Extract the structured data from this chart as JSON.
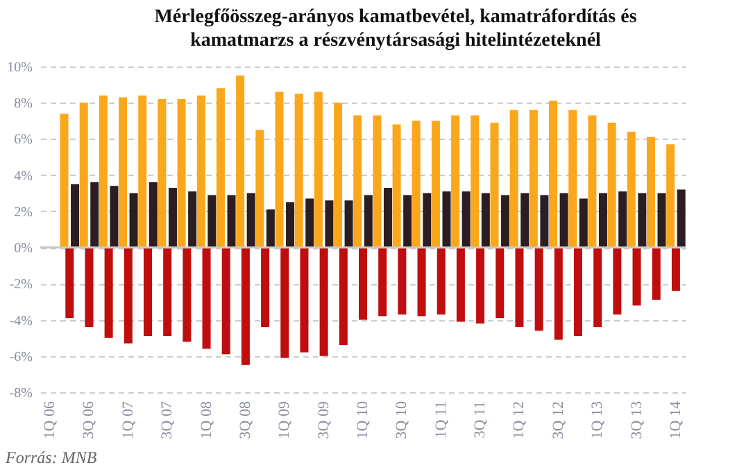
{
  "chart_data": {
    "type": "bar",
    "title": "Mérlegfőösszeg-arányos kamatbevétel, kamatráfordítás és kamatmarzs a részvénytársasági hitelintézeteknél",
    "categories": [
      "1Q 06",
      null,
      "3Q 06",
      null,
      "1Q 07",
      null,
      "3Q 07",
      null,
      "1Q 08",
      null,
      "3Q 08",
      null,
      "1Q 09",
      null,
      "3Q 09",
      null,
      "1Q 10",
      null,
      "3Q 10",
      null,
      "1Q 11",
      null,
      "3Q 11",
      null,
      "1Q 12",
      null,
      "3Q 12",
      null,
      "1Q 13",
      null,
      "3Q 13",
      null,
      "1Q 14"
    ],
    "series": [
      {
        "color": "#fba71b",
        "values": [
          null,
          7.4,
          8.0,
          8.4,
          8.3,
          8.4,
          8.2,
          8.2,
          8.4,
          8.8,
          9.5,
          6.5,
          8.6,
          8.5,
          8.6,
          8.0,
          7.3,
          7.3,
          6.8,
          7.0,
          7.0,
          7.3,
          7.3,
          6.9,
          7.6,
          7.6,
          8.1,
          7.6,
          7.3,
          6.9,
          6.4,
          6.1,
          5.7
        ]
      },
      {
        "color": "#c00d0d",
        "values": [
          null,
          -3.9,
          -4.4,
          -5.0,
          -5.3,
          -4.9,
          -4.9,
          -5.2,
          -5.6,
          -5.9,
          -6.5,
          -4.4,
          -6.1,
          -5.8,
          -6.0,
          -5.4,
          -4.0,
          -3.8,
          -3.7,
          -3.8,
          -3.7,
          -4.1,
          -4.2,
          -3.9,
          -4.4,
          -4.6,
          -5.1,
          -4.9,
          -4.4,
          -3.7,
          -3.2,
          -2.9,
          -2.4
        ]
      },
      {
        "color": "#2b1d22",
        "values": [
          null,
          3.5,
          3.6,
          3.4,
          3.0,
          3.6,
          3.3,
          3.1,
          2.9,
          2.9,
          3.0,
          2.1,
          2.5,
          2.7,
          2.6,
          2.6,
          2.9,
          3.3,
          2.9,
          3.0,
          3.1,
          3.1,
          3.0,
          2.9,
          3.0,
          2.9,
          3.0,
          2.7,
          3.0,
          3.1,
          3.0,
          3.0,
          3.2
        ]
      }
    ],
    "ylim": [
      -8,
      10
    ],
    "yticks": [
      {
        "value": -8,
        "label": "-8%"
      },
      {
        "value": -6,
        "label": "-6%"
      },
      {
        "value": -4,
        "label": "-4%"
      },
      {
        "value": -2,
        "label": "-2%"
      },
      {
        "value": 0,
        "label": "0%"
      },
      {
        "value": 2,
        "label": "2%"
      },
      {
        "value": 4,
        "label": "4%"
      },
      {
        "value": 6,
        "label": "6%"
      },
      {
        "value": 8,
        "label": "8%"
      },
      {
        "value": 10,
        "label": "10%"
      }
    ],
    "grid": "y",
    "annotations": [
      "Forrás: MNB"
    ]
  }
}
